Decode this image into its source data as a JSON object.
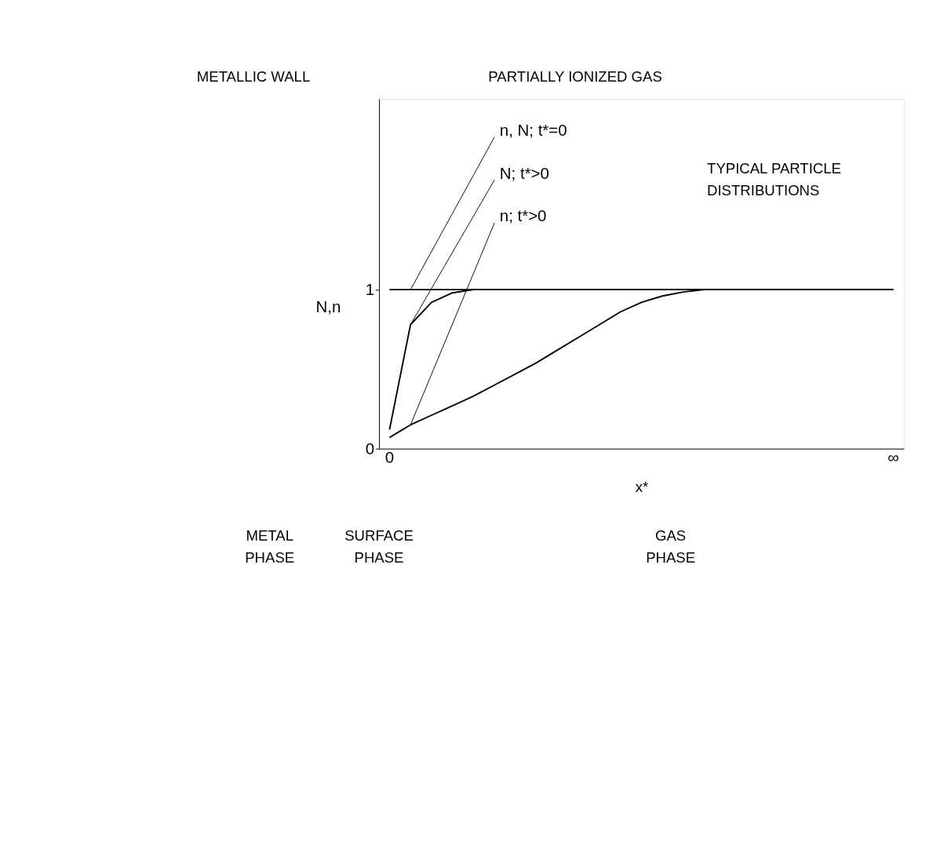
{
  "chart_data": {
    "type": "line",
    "xlabel": "x*",
    "ylabel": "N,n",
    "categories": [
      "0",
      null,
      null,
      null,
      null,
      null,
      null,
      null,
      null,
      null,
      null,
      null,
      null,
      null,
      null,
      null,
      null,
      null,
      null,
      null,
      null,
      null,
      null,
      null,
      "∞"
    ],
    "ylim": [
      0,
      2.2
    ],
    "yticks": [
      0,
      1
    ],
    "grid": false,
    "legend": false,
    "series": [
      {
        "name": "n, N;  t*=0",
        "color": "#000000",
        "values": [
          1,
          1,
          1,
          1,
          1,
          1,
          1,
          1,
          1,
          1,
          1,
          1,
          1,
          1,
          1,
          1,
          1,
          1,
          1,
          1,
          1,
          1,
          1,
          1,
          1
        ]
      },
      {
        "name": "N;  t*>0",
        "color": "#000000",
        "values": [
          0.12,
          0.78,
          0.92,
          0.98,
          1,
          1,
          1,
          1,
          1,
          1,
          1,
          1,
          1,
          1,
          1,
          1,
          1,
          1,
          1,
          1,
          1,
          1,
          1,
          1,
          1
        ]
      },
      {
        "name": "n;  t*>0",
        "color": "#000000",
        "values": [
          0.07,
          0.15,
          0.21,
          0.27,
          0.33,
          0.4,
          0.47,
          0.54,
          0.62,
          0.7,
          0.78,
          0.86,
          0.92,
          0.96,
          0.985,
          1,
          1,
          1,
          1,
          1,
          1,
          1,
          1,
          1,
          1
        ]
      }
    ],
    "annotations": [
      "METALLIC WALL",
      "PARTIALLY IONIZED GAS",
      "TYPICAL PARTICLE DISTRIBUTIONS",
      "METAL PHASE",
      "SURFACE PHASE",
      "GAS PHASE"
    ]
  }
}
